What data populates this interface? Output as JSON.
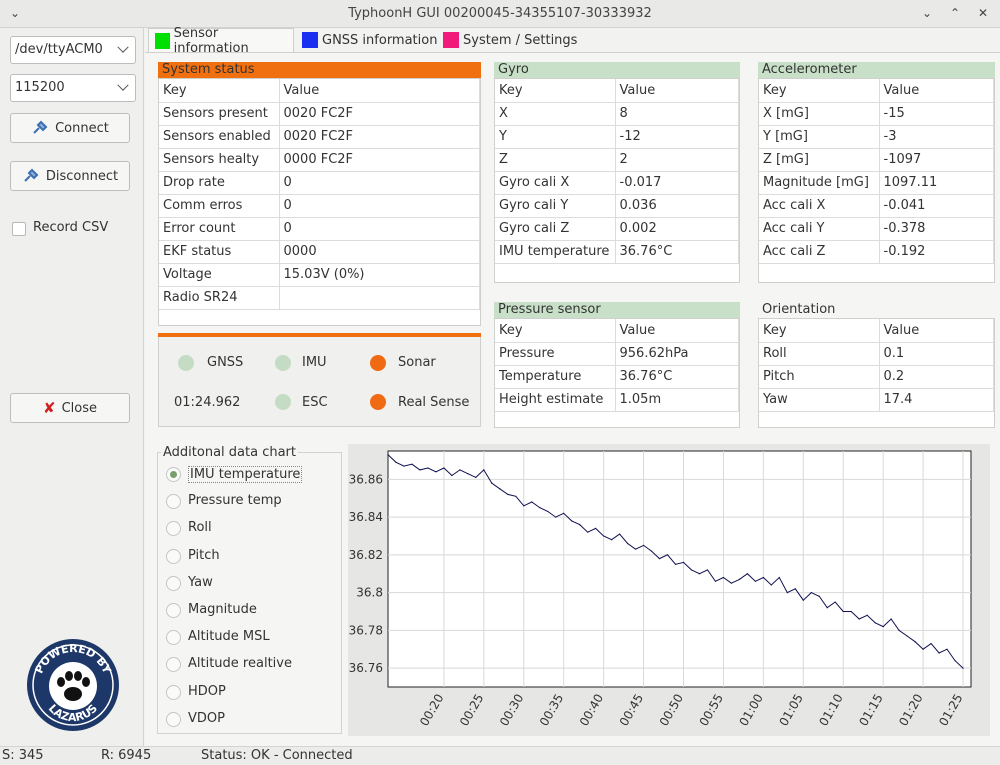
{
  "window": {
    "title": "TyphoonH GUI  00200045-34355107-30333932",
    "menu_glyph": "⌄",
    "min_glyph": "⌄",
    "max_glyph": "⌃",
    "close_glyph": "✕"
  },
  "left": {
    "port": "/dev/ttyACM0",
    "baud": "115200",
    "connect_label": "Connect",
    "disconnect_label": "Disconnect",
    "record_csv_label": "Record CSV",
    "close_label": "Close",
    "logo_top": "POWERED BY",
    "logo_bottom": "LAZARUS"
  },
  "tabs": [
    {
      "label": "Sensor information",
      "color": "#00e000"
    },
    {
      "label": "GNSS information",
      "color": "#1a2ff0"
    },
    {
      "label": "System / Settings",
      "color": "#f01a7a"
    }
  ],
  "system_status": {
    "title": "System status",
    "header": [
      "Key",
      "Value"
    ],
    "rows": [
      [
        "Sensors present",
        "0020 FC2F"
      ],
      [
        "Sensors enabled",
        "0020 FC2F"
      ],
      [
        "Sensors healty",
        "0000 FC2F"
      ],
      [
        "Drop rate",
        "0"
      ],
      [
        "Comm erros",
        "0"
      ],
      [
        "Error count",
        "0"
      ],
      [
        "EKF status",
        "0000"
      ],
      [
        "Voltage",
        "15.03V  (0%)"
      ],
      [
        "Radio SR24",
        ""
      ]
    ],
    "accent": "#f07010"
  },
  "indicators": {
    "gnss": "GNSS",
    "imu": "IMU",
    "sonar": "Sonar",
    "esc": "ESC",
    "realsense": "Real Sense",
    "time": "01:24.962",
    "ok_color": "#c4dcc4",
    "warn_color": "#f06a14"
  },
  "gyro": {
    "title": "Gyro",
    "header": [
      "Key",
      "Value"
    ],
    "rows": [
      [
        "X",
        "8"
      ],
      [
        "Y",
        "-12"
      ],
      [
        "Z",
        "2"
      ],
      [
        "Gyro cali X",
        "-0.017"
      ],
      [
        "Gyro cali Y",
        "0.036"
      ],
      [
        "Gyro cali Z",
        "0.002"
      ],
      [
        "IMU temperature",
        "36.76°C"
      ]
    ]
  },
  "accel": {
    "title": "Accelerometer",
    "header": [
      "Key",
      "Value"
    ],
    "rows": [
      [
        "X [mG]",
        "-15"
      ],
      [
        "Y [mG]",
        "-3"
      ],
      [
        "Z [mG]",
        "-1097"
      ],
      [
        "Magnitude [mG]",
        "1097.11"
      ],
      [
        "Acc cali X",
        "-0.041"
      ],
      [
        "Acc cali Y",
        "-0.378"
      ],
      [
        "Acc cali Z",
        "-0.192"
      ]
    ]
  },
  "pressure": {
    "title": "Pressure sensor",
    "header": [
      "Key",
      "Value"
    ],
    "rows": [
      [
        "Pressure",
        "956.62hPa"
      ],
      [
        "Temperature",
        "36.76°C"
      ],
      [
        "Height estimate",
        "1.05m"
      ]
    ]
  },
  "orientation": {
    "title": "Orientation",
    "header": [
      "Key",
      "Value"
    ],
    "rows": [
      [
        "Roll",
        "0.1"
      ],
      [
        "Pitch",
        "0.2"
      ],
      [
        "Yaw",
        "17.4"
      ]
    ]
  },
  "chart_select": {
    "title": "Additonal data chart",
    "options": [
      "IMU temperature",
      "Pressure temp",
      "Roll",
      "Pitch",
      "Yaw",
      "Magnitude",
      "Altitude MSL",
      "Altitude realtive",
      "HDOP",
      "VDOP"
    ],
    "selected": 0
  },
  "chart_data": {
    "type": "line",
    "title": "",
    "xlabel": "",
    "ylabel": "",
    "x_ticks": [
      "00:20",
      "00:25",
      "00:30",
      "00:35",
      "00:40",
      "00:45",
      "00:50",
      "00:55",
      "01:00",
      "01:05",
      "01:10",
      "01:15",
      "01:20",
      "01:25"
    ],
    "y_ticks": [
      "36.86",
      "36.84",
      "36.82",
      "36.8",
      "36.78",
      "36.76"
    ],
    "ylim": [
      36.75,
      36.875
    ],
    "xlim_seconds": [
      13,
      86
    ],
    "grid": true,
    "series": [
      {
        "color": "#101050",
        "x": [
          13,
          14,
          15,
          16,
          17,
          18,
          19,
          20,
          21,
          22,
          23,
          24,
          25,
          26,
          27,
          28,
          29,
          30,
          31,
          32,
          33,
          34,
          35,
          36,
          37,
          38,
          39,
          40,
          41,
          42,
          43,
          44,
          45,
          46,
          47,
          48,
          49,
          50,
          51,
          52,
          53,
          54,
          55,
          56,
          57,
          58,
          59,
          60,
          61,
          62,
          63,
          64,
          65,
          66,
          67,
          68,
          69,
          70,
          71,
          72,
          73,
          74,
          75,
          76,
          77,
          78,
          79,
          80,
          81,
          82,
          83,
          84,
          85
        ],
        "values": [
          36.873,
          36.869,
          36.867,
          36.868,
          36.865,
          36.866,
          36.864,
          36.866,
          36.862,
          36.865,
          36.863,
          36.861,
          36.865,
          36.858,
          36.855,
          36.852,
          36.851,
          36.846,
          36.848,
          36.845,
          36.843,
          36.84,
          36.842,
          36.838,
          36.836,
          36.832,
          36.834,
          36.83,
          36.828,
          36.831,
          36.826,
          36.823,
          36.825,
          36.822,
          36.818,
          36.82,
          36.815,
          36.816,
          36.812,
          36.81,
          36.812,
          36.806,
          36.808,
          36.805,
          36.807,
          36.81,
          36.806,
          36.808,
          36.804,
          36.808,
          36.8,
          36.802,
          36.796,
          36.8,
          36.798,
          36.792,
          36.795,
          36.79,
          36.79,
          36.786,
          36.788,
          36.784,
          36.782,
          36.786,
          36.78,
          36.777,
          36.774,
          36.77,
          36.773,
          36.768,
          36.77,
          36.764,
          36.76
        ]
      }
    ]
  }
}
